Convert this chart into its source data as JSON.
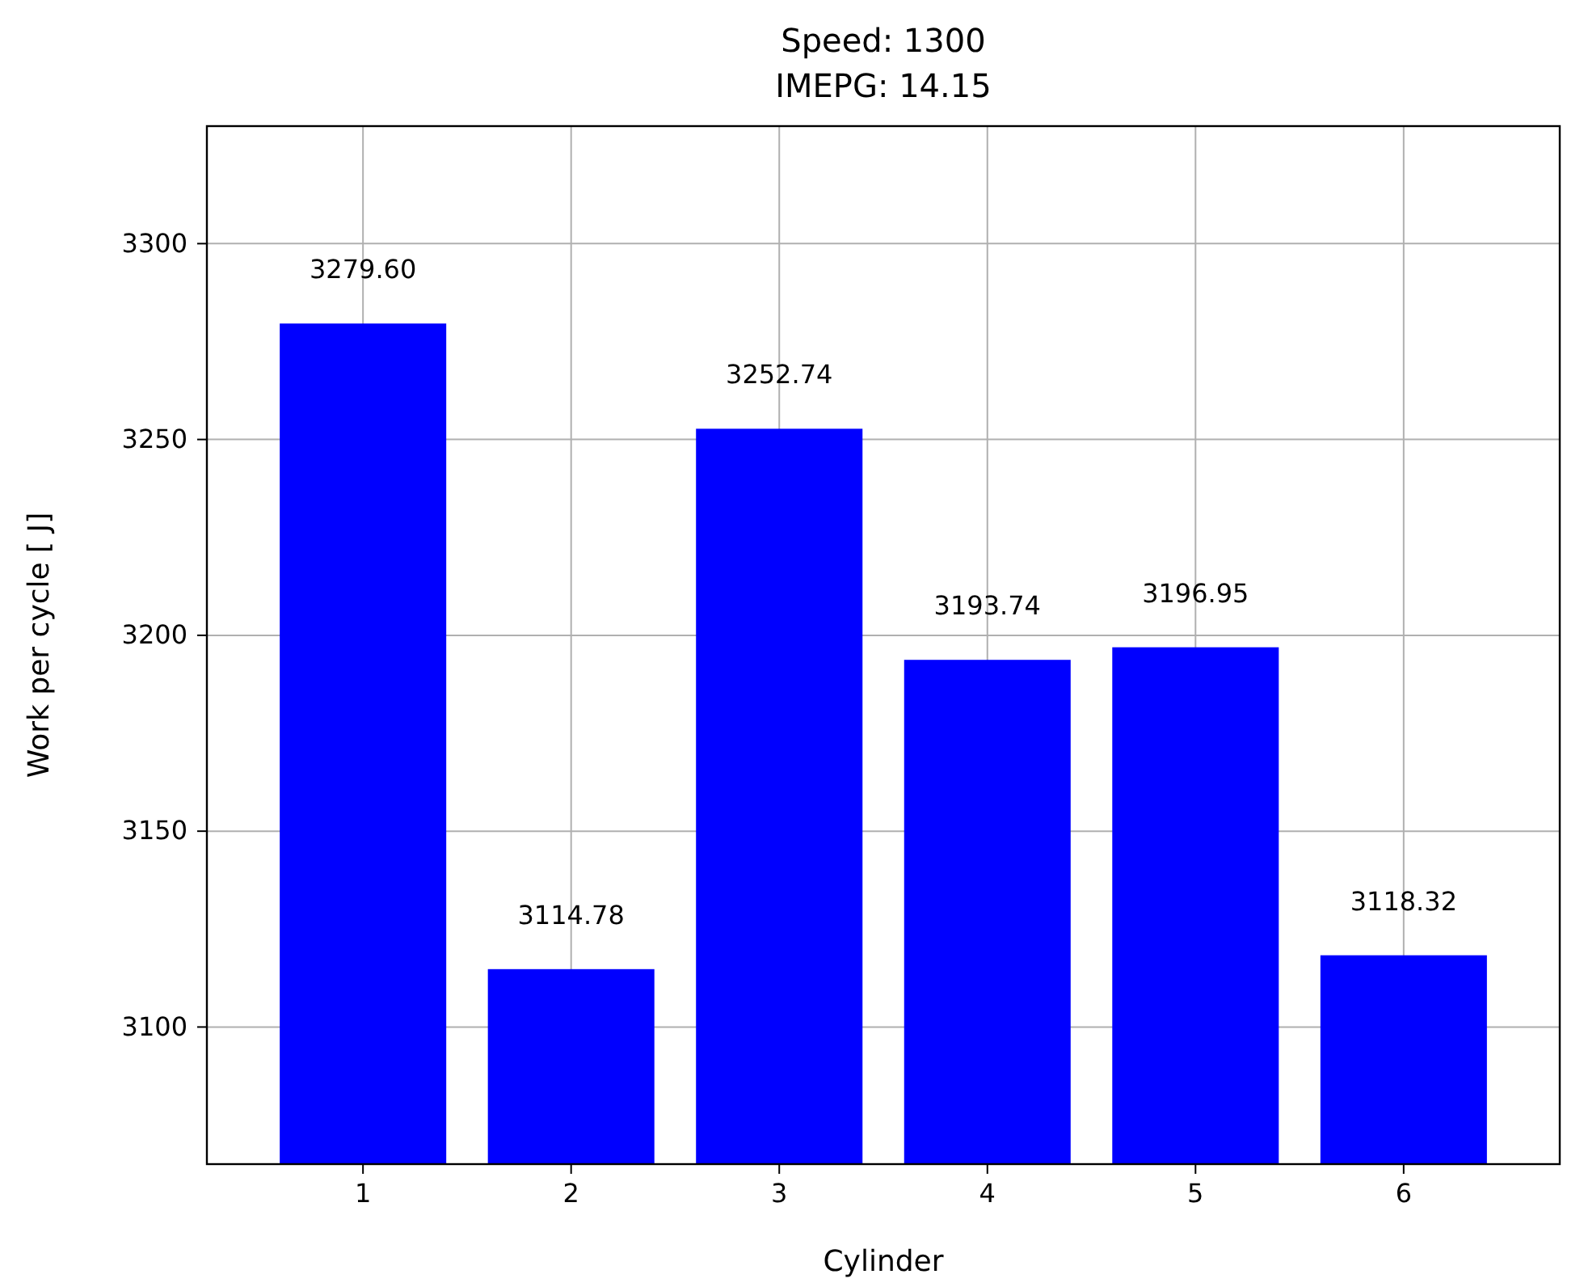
{
  "chart_data": {
    "type": "bar",
    "title": "Speed: 1300",
    "subtitle": "IMEPG: 14.15",
    "xlabel": "Cylinder",
    "ylabel": "Work per cycle [ J]",
    "categories": [
      "1",
      "2",
      "3",
      "4",
      "5",
      "6"
    ],
    "values": [
      3279.6,
      3114.78,
      3252.74,
      3193.74,
      3196.95,
      3118.32
    ],
    "value_labels": [
      "3279.60",
      "3114.78",
      "3252.74",
      "3193.74",
      "3196.95",
      "3118.32"
    ],
    "color": "#0000ff",
    "ylim": [
      3065,
      3330
    ],
    "yticks": [
      3100,
      3150,
      3200,
      3250,
      3300
    ],
    "grid": true
  }
}
